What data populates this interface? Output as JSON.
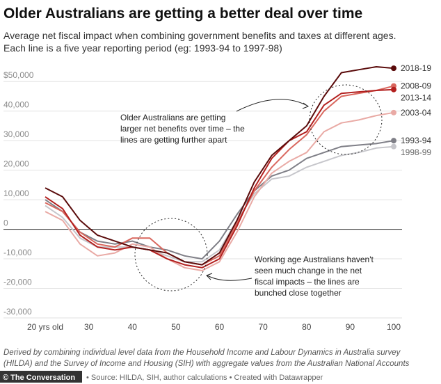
{
  "chart_data": {
    "type": "line",
    "title": "Older Australians are getting a better deal over time",
    "subtitle": [
      "Average net fiscal impact when combining government benefits and taxes at different ages.",
      "Each line is a five year reporting period (eg: 1993-94 to 1997-98)"
    ],
    "x": [
      20,
      24,
      28,
      32,
      36,
      40,
      44,
      48,
      52,
      56,
      60,
      64,
      68,
      72,
      76,
      80,
      84,
      88,
      92,
      96,
      100
    ],
    "xlim": [
      20,
      100
    ],
    "xticks": [
      {
        "value": 20,
        "label": "20 yrs old"
      },
      30,
      40,
      50,
      60,
      70,
      80,
      90,
      100
    ],
    "ylim": [
      -30000,
      55000
    ],
    "yticks": [
      {
        "value": -30000,
        "label": "-30,000"
      },
      {
        "value": -20000,
        "label": "-20,000"
      },
      {
        "value": -10000,
        "label": "-10,000"
      },
      0,
      {
        "value": 10000,
        "label": "10,000"
      },
      {
        "value": 20000,
        "label": "20,000"
      },
      {
        "value": 30000,
        "label": "30,000"
      },
      {
        "value": 40000,
        "label": "40,000"
      },
      {
        "value": 50000,
        "label": "$50,000"
      }
    ],
    "grid": true,
    "series": [
      {
        "name": "1998-99",
        "color": "#c6c6cb",
        "values": [
          8000,
          4000,
          -3000,
          -6000,
          -6000,
          -6000,
          -7000,
          -9000,
          -11000,
          -11000,
          -7000,
          3000,
          12000,
          17000,
          18000,
          21000,
          23000,
          25000,
          26000,
          27500,
          28000
        ]
      },
      {
        "name": "1993-94",
        "color": "#7f7f87",
        "values": [
          10000,
          6000,
          -1000,
          -4000,
          -5000,
          -4000,
          -6000,
          -7000,
          -9000,
          -10000,
          -4000,
          5000,
          13000,
          18000,
          20000,
          24000,
          26000,
          28000,
          28500,
          29000,
          30000
        ]
      },
      {
        "name": "2003-04",
        "color": "#e9aaa5",
        "values": [
          6000,
          3000,
          -5000,
          -9000,
          -8000,
          -5000,
          -6000,
          -10000,
          -13000,
          -14000,
          -11000,
          -1000,
          11000,
          19000,
          23000,
          26000,
          33000,
          36000,
          37000,
          38500,
          39500
        ]
      },
      {
        "name": "2008-09",
        "color": "#d9675e",
        "values": [
          9000,
          6000,
          -1000,
          -5000,
          -6000,
          -3000,
          -3000,
          -8000,
          -11000,
          -12000,
          -9000,
          2000,
          13000,
          21000,
          27000,
          32000,
          40000,
          45000,
          46000,
          47000,
          48500
        ]
      },
      {
        "name": "2013-14",
        "color": "#b3201f",
        "values": [
          11000,
          7000,
          -2000,
          -6000,
          -7000,
          -6000,
          -7000,
          -10000,
          -12000,
          -13000,
          -10000,
          1000,
          14000,
          24000,
          30000,
          33000,
          42000,
          46000,
          46500,
          47000,
          47300
        ]
      },
      {
        "name": "2018-19",
        "color": "#5a0b0b",
        "values": [
          14000,
          11000,
          3000,
          -2000,
          -4000,
          -6000,
          -7000,
          -8000,
          -11000,
          -12000,
          -8000,
          3000,
          16000,
          25000,
          30000,
          35000,
          45000,
          53000,
          54000,
          55000,
          54500
        ]
      }
    ],
    "annotations": [
      [
        "Older Australians are getting",
        "larger net benefits over time – the",
        "lines are getting further apart"
      ],
      [
        "Working age Australians haven't",
        "seen much change in the net",
        "fiscal impacts – the lines are",
        "bunched close together"
      ]
    ],
    "notes": [
      "Derived by combining individual level data from the Household Income and Labour Dynamics in Australia survey",
      "(HILDA) and the Survey of Income and Housing (SIH) with aggregate values from the Australian National Accounts"
    ],
    "logo": "© The Conversation",
    "source": "• Source: HILDA, SIH, author calculations • Created with Datawrapper"
  }
}
